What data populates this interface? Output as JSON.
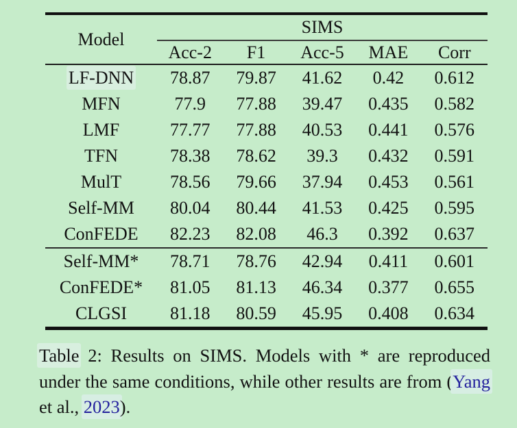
{
  "colors": {
    "page_background": "#c6ecca",
    "highlight": "#d8efdf",
    "citation_link": "#23209d",
    "text": "#121212",
    "rule": "#101010"
  },
  "table": {
    "model_header": "Model",
    "group_header": "SIMS",
    "columns": [
      "Acc-2",
      "F1",
      "Acc-5",
      "MAE",
      "Corr"
    ],
    "rows": [
      {
        "model": "LF-DNN",
        "acc2": "78.87",
        "f1": "79.87",
        "acc5": "41.62",
        "mae": "0.42",
        "corr": "0.612"
      },
      {
        "model": "MFN",
        "acc2": "77.9",
        "f1": "77.88",
        "acc5": "39.47",
        "mae": "0.435",
        "corr": "0.582"
      },
      {
        "model": "LMF",
        "acc2": "77.77",
        "f1": "77.88",
        "acc5": "40.53",
        "mae": "0.441",
        "corr": "0.576"
      },
      {
        "model": "TFN",
        "acc2": "78.38",
        "f1": "78.62",
        "acc5": "39.3",
        "mae": "0.432",
        "corr": "0.591"
      },
      {
        "model": "MulT",
        "acc2": "78.56",
        "f1": "79.66",
        "acc5": "37.94",
        "mae": "0.453",
        "corr": "0.561"
      },
      {
        "model": "Self-MM",
        "acc2": "80.04",
        "f1": "80.44",
        "acc5": "41.53",
        "mae": "0.425",
        "corr": "0.595"
      },
      {
        "model": "ConFEDE",
        "acc2": "82.23",
        "f1": "82.08",
        "acc5": "46.3",
        "mae": "0.392",
        "corr": "0.637"
      }
    ],
    "rows_reproduced": [
      {
        "model": "Self-MM*",
        "acc2": "78.71",
        "f1": "78.76",
        "acc5": "42.94",
        "mae": "0.411",
        "corr": "0.601"
      },
      {
        "model": "ConFEDE*",
        "acc2": "81.05",
        "f1": "81.13",
        "acc5": "46.34",
        "mae": "0.377",
        "corr": "0.655"
      },
      {
        "model": "CLGSI",
        "acc2": "81.18",
        "f1": "80.59",
        "acc5": "45.95",
        "mae": "0.408",
        "corr": "0.634"
      }
    ]
  },
  "caption": {
    "table_word": "Table",
    "body": " 2: Results on SIMS. Models with * are reproduced under the same conditions, while other results are from (",
    "cite_author": "Yang",
    "et_al": " et al., ",
    "cite_year": "2023",
    "closing": ")."
  }
}
